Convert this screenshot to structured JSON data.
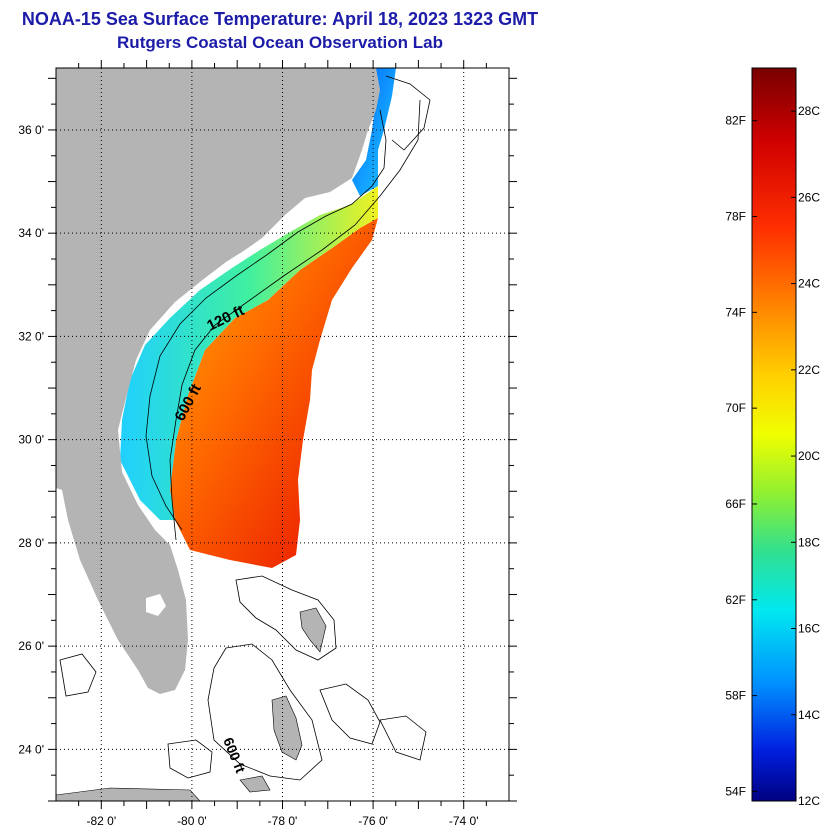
{
  "header": {
    "title": "NOAA-15 Sea Surface Temperature:  April 18, 2023 1323 GMT",
    "subtitle": "Rutgers Coastal Ocean Observation Lab"
  },
  "map": {
    "lat_range": [
      23,
      37.2
    ],
    "lon_range": [
      -83,
      -73
    ],
    "lat_ticks": [
      {
        "value": 24,
        "label": "24 0'"
      },
      {
        "value": 26,
        "label": "26 0'"
      },
      {
        "value": 28,
        "label": "28 0'"
      },
      {
        "value": 30,
        "label": "30 0'"
      },
      {
        "value": 32,
        "label": "32 0'"
      },
      {
        "value": 34,
        "label": "34 0'"
      },
      {
        "value": 36,
        "label": "36 0'"
      }
    ],
    "lon_ticks": [
      {
        "value": -82,
        "label": "-82 0'"
      },
      {
        "value": -80,
        "label": "-80 0'"
      },
      {
        "value": -78,
        "label": "-78 0'"
      },
      {
        "value": -76,
        "label": "-76 0'"
      },
      {
        "value": -74,
        "label": "-74 0'"
      }
    ],
    "contour_labels": [
      "120 ft",
      "600 ft",
      "600 ft"
    ],
    "colors": {
      "land": "#b4b4b4",
      "cold": "#0000cc",
      "warm": "#e01000"
    }
  },
  "colorbar": {
    "min_c": 12,
    "max_c": 29,
    "celsius_labels": [
      "28C",
      "26C",
      "24C",
      "22C",
      "20C",
      "18C",
      "16C",
      "14C",
      "12C"
    ],
    "fahrenheit_labels": [
      "82F",
      "78F",
      "74F",
      "70F",
      "66F",
      "62F",
      "58F",
      "54F"
    ]
  }
}
